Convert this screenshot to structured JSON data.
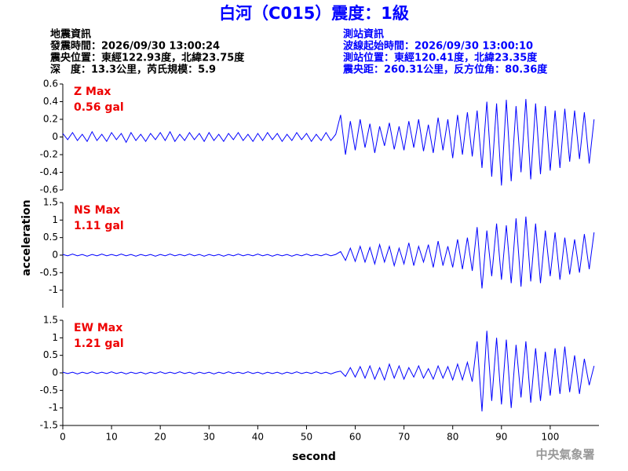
{
  "title": "白河（C015）震度：1級",
  "info": {
    "left": [
      "地震資訊",
      "發震時間：2026/09/30 13:00:24",
      "震央位置：東經122.93度，北緯23.75度",
      "深　度：13.3公里，芮氏規模：5.9"
    ],
    "right": [
      "測站資訊",
      "波線起始時間：2026/09/30 13:00:10",
      "測站位置：東經120.41度，北緯23.35度",
      "震央距：260.31公里，反方位角：80.36度"
    ]
  },
  "footer": "中央氣象署",
  "chart_data": [
    {
      "type": "line",
      "annotation": [
        "Z Max",
        "0.56 gal"
      ],
      "color": "#0000ff",
      "xlim": [
        0,
        110
      ],
      "ylim": [
        -0.6,
        0.6
      ],
      "yticks": [
        0.6,
        0.4,
        0.2,
        0,
        -0.2,
        -0.4,
        -0.6
      ],
      "x": [
        0,
        1,
        2,
        3,
        4,
        5,
        6,
        7,
        8,
        9,
        10,
        11,
        12,
        13,
        14,
        15,
        16,
        17,
        18,
        19,
        20,
        21,
        22,
        23,
        24,
        25,
        26,
        27,
        28,
        29,
        30,
        31,
        32,
        33,
        34,
        35,
        36,
        37,
        38,
        39,
        40,
        41,
        42,
        43,
        44,
        45,
        46,
        47,
        48,
        49,
        50,
        51,
        52,
        53,
        54,
        55,
        56,
        57,
        58,
        59,
        60,
        61,
        62,
        63,
        64,
        65,
        66,
        67,
        68,
        69,
        70,
        71,
        72,
        73,
        74,
        75,
        76,
        77,
        78,
        79,
        80,
        81,
        82,
        83,
        84,
        85,
        86,
        87,
        88,
        89,
        90,
        91,
        92,
        93,
        94,
        95,
        96,
        97,
        98,
        99,
        100,
        101,
        102,
        103,
        104,
        105,
        106,
        107,
        108,
        109
      ],
      "values": [
        0.04,
        -0.03,
        0.05,
        -0.04,
        0.03,
        -0.05,
        0.06,
        -0.04,
        0.03,
        -0.05,
        0.05,
        -0.03,
        0.04,
        -0.06,
        0.05,
        -0.04,
        0.03,
        -0.05,
        0.04,
        -0.03,
        0.05,
        -0.04,
        0.06,
        -0.05,
        0.03,
        -0.04,
        0.05,
        -0.03,
        0.04,
        -0.05,
        0.05,
        -0.04,
        0.03,
        -0.05,
        0.04,
        -0.03,
        0.05,
        -0.04,
        0.03,
        -0.05,
        0.04,
        -0.04,
        0.05,
        -0.03,
        0.04,
        -0.05,
        0.03,
        -0.04,
        0.05,
        -0.03,
        0.04,
        -0.05,
        0.03,
        -0.04,
        0.05,
        -0.04,
        0.03,
        0.25,
        -0.2,
        0.18,
        -0.15,
        0.2,
        -0.12,
        0.15,
        -0.18,
        0.12,
        -0.1,
        0.16,
        -0.14,
        0.12,
        -0.15,
        0.18,
        -0.12,
        0.2,
        -0.16,
        0.14,
        -0.18,
        0.22,
        -0.15,
        0.2,
        -0.24,
        0.25,
        -0.2,
        0.28,
        -0.22,
        0.3,
        -0.35,
        0.4,
        -0.45,
        0.38,
        -0.55,
        0.42,
        -0.5,
        0.35,
        -0.4,
        0.43,
        -0.48,
        0.38,
        -0.42,
        0.35,
        -0.38,
        0.3,
        -0.35,
        0.32,
        -0.28,
        0.3,
        -0.25,
        0.28,
        -0.3,
        0.2
      ]
    },
    {
      "type": "line",
      "annotation": [
        "NS Max",
        "1.11 gal"
      ],
      "ylabel": "acceleration",
      "color": "#0000ff",
      "xlim": [
        0,
        110
      ],
      "ylim": [
        -1.5,
        1.5
      ],
      "yticks": [
        1.5,
        1,
        0.5,
        0,
        -0.5,
        -1
      ],
      "x": [
        0,
        1,
        2,
        3,
        4,
        5,
        6,
        7,
        8,
        9,
        10,
        11,
        12,
        13,
        14,
        15,
        16,
        17,
        18,
        19,
        20,
        21,
        22,
        23,
        24,
        25,
        26,
        27,
        28,
        29,
        30,
        31,
        32,
        33,
        34,
        35,
        36,
        37,
        38,
        39,
        40,
        41,
        42,
        43,
        44,
        45,
        46,
        47,
        48,
        49,
        50,
        51,
        52,
        53,
        54,
        55,
        56,
        57,
        58,
        59,
        60,
        61,
        62,
        63,
        64,
        65,
        66,
        67,
        68,
        69,
        70,
        71,
        72,
        73,
        74,
        75,
        76,
        77,
        78,
        79,
        80,
        81,
        82,
        83,
        84,
        85,
        86,
        87,
        88,
        89,
        90,
        91,
        92,
        93,
        94,
        95,
        96,
        97,
        98,
        99,
        100,
        101,
        102,
        103,
        104,
        105,
        106,
        107,
        108,
        109
      ],
      "values": [
        0.02,
        -0.02,
        0.03,
        -0.02,
        0.02,
        -0.03,
        0.02,
        -0.02,
        0.03,
        -0.02,
        0.02,
        -0.02,
        0.03,
        -0.02,
        0.02,
        -0.03,
        0.02,
        -0.02,
        0.02,
        -0.03,
        0.02,
        -0.02,
        0.03,
        -0.02,
        0.02,
        -0.02,
        0.03,
        -0.02,
        0.02,
        -0.03,
        0.02,
        -0.02,
        0.02,
        -0.03,
        0.02,
        -0.02,
        0.03,
        -0.02,
        0.02,
        -0.02,
        0.03,
        -0.02,
        0.02,
        -0.03,
        0.02,
        -0.02,
        0.02,
        -0.03,
        0.02,
        -0.02,
        0.03,
        -0.02,
        0.02,
        -0.02,
        0.03,
        -0.02,
        0.02,
        0.1,
        -0.15,
        0.2,
        -0.18,
        0.25,
        -0.2,
        0.22,
        -0.25,
        0.3,
        -0.2,
        0.25,
        -0.3,
        0.2,
        -0.25,
        0.35,
        -0.3,
        0.25,
        -0.2,
        0.3,
        -0.35,
        0.4,
        -0.3,
        0.25,
        -0.35,
        0.45,
        -0.4,
        0.5,
        -0.45,
        0.8,
        -0.95,
        0.7,
        -0.6,
        0.9,
        -0.7,
        0.85,
        -0.8,
        1.05,
        -0.9,
        1.1,
        -0.75,
        0.9,
        -0.8,
        0.7,
        -0.6,
        0.65,
        -0.7,
        0.5,
        -0.55,
        0.45,
        -0.5,
        0.6,
        -0.4,
        0.65
      ]
    },
    {
      "type": "line",
      "annotation": [
        "EW Max",
        "1.21 gal"
      ],
      "xlabel": "second",
      "color": "#0000ff",
      "xlim": [
        0,
        110
      ],
      "xticks": [
        0,
        10,
        20,
        30,
        40,
        50,
        60,
        70,
        80,
        90,
        100
      ],
      "ylim": [
        -1.5,
        1.5
      ],
      "yticks": [
        1.5,
        1,
        0.5,
        0,
        -0.5,
        -1,
        -1.5
      ],
      "x": [
        0,
        1,
        2,
        3,
        4,
        5,
        6,
        7,
        8,
        9,
        10,
        11,
        12,
        13,
        14,
        15,
        16,
        17,
        18,
        19,
        20,
        21,
        22,
        23,
        24,
        25,
        26,
        27,
        28,
        29,
        30,
        31,
        32,
        33,
        34,
        35,
        36,
        37,
        38,
        39,
        40,
        41,
        42,
        43,
        44,
        45,
        46,
        47,
        48,
        49,
        50,
        51,
        52,
        53,
        54,
        55,
        56,
        57,
        58,
        59,
        60,
        61,
        62,
        63,
        64,
        65,
        66,
        67,
        68,
        69,
        70,
        71,
        72,
        73,
        74,
        75,
        76,
        77,
        78,
        79,
        80,
        81,
        82,
        83,
        84,
        85,
        86,
        87,
        88,
        89,
        90,
        91,
        92,
        93,
        94,
        95,
        96,
        97,
        98,
        99,
        100,
        101,
        102,
        103,
        104,
        105,
        106,
        107,
        108,
        109
      ],
      "values": [
        0.02,
        -0.02,
        0.02,
        -0.03,
        0.02,
        -0.02,
        0.03,
        -0.02,
        0.02,
        -0.02,
        0.03,
        -0.02,
        0.02,
        -0.03,
        0.02,
        -0.02,
        0.02,
        -0.03,
        0.02,
        -0.02,
        0.03,
        -0.02,
        0.02,
        -0.02,
        0.03,
        -0.02,
        0.02,
        -0.03,
        0.02,
        -0.02,
        0.02,
        -0.03,
        0.02,
        -0.02,
        0.03,
        -0.02,
        0.02,
        -0.02,
        0.03,
        -0.02,
        0.02,
        -0.03,
        0.02,
        -0.02,
        0.02,
        -0.03,
        0.02,
        -0.02,
        0.03,
        -0.02,
        0.02,
        -0.02,
        0.03,
        -0.02,
        0.02,
        -0.03,
        0.02,
        0.05,
        -0.1,
        0.15,
        -0.12,
        0.18,
        -0.15,
        0.2,
        -0.18,
        0.15,
        -0.2,
        0.25,
        -0.15,
        0.2,
        -0.18,
        0.15,
        -0.12,
        0.2,
        -0.15,
        0.12,
        -0.18,
        0.2,
        -0.15,
        0.18,
        -0.2,
        0.25,
        -0.2,
        0.3,
        -0.25,
        0.9,
        -1.1,
        1.2,
        -0.8,
        1.0,
        -0.9,
        0.95,
        -1.0,
        0.8,
        -0.7,
        0.9,
        -0.85,
        0.7,
        -0.8,
        0.6,
        -0.65,
        0.7,
        -0.6,
        0.75,
        -0.55,
        0.5,
        -0.6,
        0.4,
        -0.35,
        0.2
      ]
    }
  ]
}
